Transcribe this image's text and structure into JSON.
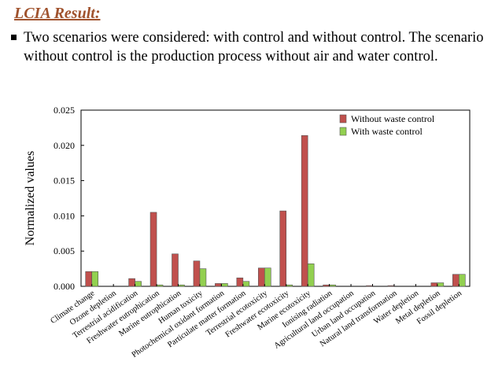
{
  "slide": {
    "title": "LCIA Result:",
    "bullet": "Two scenarios were considered: with control and without control. The scenario without control is the production process without air and water control."
  },
  "chart_data": {
    "type": "bar",
    "title": "",
    "xlabel": "",
    "ylabel": "Normalized values",
    "ylim": [
      0,
      0.025
    ],
    "yticks": [
      "0.000",
      "0.005",
      "0.010",
      "0.015",
      "0.020",
      "0.025"
    ],
    "legend_position": "top-right",
    "grid": false,
    "categories": [
      "Climate change",
      "Ozone depletion",
      "Terrestrial acidification",
      "Freshwater eutrophication",
      "Marine eutrophication",
      "Human toxicity",
      "Photochemical oxidant formation",
      "Particulate matter formation",
      "Terrestrial ecotoxicity",
      "Freshwater ecotoxicity",
      "Marine ecotoxicity",
      "Ionising radiation",
      "Agricultural land occupation",
      "Urban land occupation",
      "Natural land transformation",
      "Water depletion",
      "Metal depletion",
      "Fossil depletion"
    ],
    "series": [
      {
        "name": "Without waste control",
        "color": "#c0504d",
        "values": [
          0.0021,
          0.0,
          0.0011,
          0.0105,
          0.0046,
          0.0036,
          0.0004,
          0.0012,
          0.0026,
          0.0107,
          0.0214,
          0.0002,
          0.0,
          0.0001,
          0.0001,
          0.0,
          0.0005,
          0.0017
        ]
      },
      {
        "name": "With waste control",
        "color": "#92d050",
        "values": [
          0.0021,
          0.0,
          0.0007,
          0.0002,
          0.0002,
          0.0025,
          0.0004,
          0.0007,
          0.0026,
          0.0002,
          0.0032,
          0.0002,
          0.0,
          0.0,
          0.0,
          0.0,
          0.0005,
          0.0017
        ]
      }
    ]
  }
}
